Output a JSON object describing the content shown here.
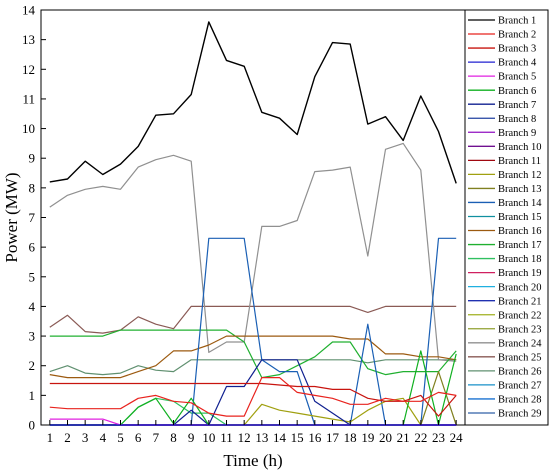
{
  "chart_data": {
    "type": "line",
    "xlabel": "Time (h)",
    "ylabel": "Power (MW)",
    "xlim": [
      0.5,
      24.5
    ],
    "ylim": [
      0,
      14
    ],
    "x_ticks": [
      "1",
      "2",
      "3",
      "4",
      "5",
      "6",
      "7",
      "8",
      "9",
      "10",
      "11",
      "12",
      "13",
      "14",
      "15",
      "16",
      "17",
      "18",
      "19",
      "20",
      "21",
      "22",
      "23",
      "24"
    ],
    "y_ticks": [
      "0",
      "1",
      "2",
      "3",
      "4",
      "5",
      "6",
      "7",
      "8",
      "9",
      "10",
      "11",
      "12",
      "13",
      "14"
    ],
    "grid": false,
    "legend": "right",
    "x": [
      1,
      2,
      3,
      4,
      5,
      6,
      7,
      8,
      9,
      10,
      11,
      12,
      13,
      14,
      15,
      16,
      17,
      18,
      19,
      20,
      21,
      22,
      23,
      24
    ],
    "series": [
      {
        "name": "Branch 1",
        "color": "#000000",
        "values": [
          8.2,
          8.3,
          8.9,
          8.45,
          8.8,
          9.4,
          10.45,
          10.5,
          11.15,
          13.6,
          12.3,
          12.1,
          10.55,
          10.35,
          9.8,
          11.75,
          12.9,
          12.85,
          10.15,
          10.4,
          9.6,
          11.1,
          9.9,
          8.15
        ]
      },
      {
        "name": "Branch 2",
        "color": "#e8231e",
        "values": [
          0.6,
          0.55,
          0.55,
          0.55,
          0.55,
          0.9,
          1.0,
          0.8,
          0.75,
          0.4,
          0.3,
          0.3,
          1.6,
          1.6,
          1.1,
          1.0,
          0.9,
          0.7,
          0.7,
          0.9,
          0.8,
          0.8,
          1.1,
          1.0
        ]
      },
      {
        "name": "Branch 3",
        "color": "#c8140f",
        "values": [
          1.4,
          1.4,
          1.4,
          1.4,
          1.4,
          1.4,
          1.4,
          1.4,
          1.4,
          1.4,
          1.4,
          1.4,
          1.4,
          1.35,
          1.3,
          1.3,
          1.2,
          1.2,
          0.9,
          0.8,
          0.8,
          1.0,
          0.3,
          1.0
        ]
      },
      {
        "name": "Branch 4",
        "color": "#2020d0",
        "values": [
          0,
          0,
          0,
          0,
          0,
          0,
          0,
          0,
          0,
          0,
          0,
          0,
          0,
          0,
          0,
          0,
          0,
          0,
          0,
          0,
          0,
          0,
          0,
          0
        ]
      },
      {
        "name": "Branch 5",
        "color": "#e020e0",
        "values": [
          0.2,
          0.2,
          0.2,
          0.2,
          0,
          0,
          0,
          0,
          0,
          0,
          0,
          0,
          0,
          0,
          0,
          0,
          0,
          0,
          0,
          0,
          0,
          0,
          0,
          0
        ]
      },
      {
        "name": "Branch 6",
        "color": "#10b020",
        "values": [
          0,
          0,
          0,
          0,
          0,
          0.6,
          0.9,
          0.05,
          0.9,
          0,
          0,
          0,
          0,
          0,
          0,
          0,
          0,
          0,
          0,
          0,
          0,
          2.5,
          0,
          2.4
        ]
      },
      {
        "name": "Branch 7",
        "color": "#102090",
        "values": [
          0,
          0,
          0,
          0,
          0,
          0,
          0,
          0,
          0.5,
          0,
          1.3,
          1.3,
          2.2,
          2.2,
          2.2,
          0.8,
          0.4,
          0,
          0,
          0,
          0,
          0,
          0,
          0
        ]
      },
      {
        "name": "Branch 8",
        "color": "#2040a0",
        "values": [
          0,
          0,
          0,
          0,
          0,
          0,
          0,
          0,
          0,
          0,
          0,
          0,
          0,
          0,
          0,
          0,
          0,
          0,
          0,
          0,
          0,
          0,
          0,
          0
        ]
      },
      {
        "name": "Branch 9",
        "color": "#9010c0",
        "values": [
          0,
          0,
          0,
          0,
          0,
          0,
          0,
          0,
          0,
          0,
          0,
          0,
          0,
          0,
          0,
          0,
          0,
          0,
          0,
          0,
          0,
          0,
          0,
          0
        ]
      },
      {
        "name": "Branch 10",
        "color": "#701090",
        "values": [
          0,
          0,
          0,
          0,
          0,
          0,
          0,
          0,
          0,
          0,
          0,
          0,
          0,
          0,
          0,
          0,
          0,
          0,
          0,
          0,
          0,
          0,
          0,
          0
        ]
      },
      {
        "name": "Branch 11",
        "color": "#a00810",
        "values": [
          0,
          0,
          0,
          0,
          0,
          0,
          0,
          0,
          0,
          0,
          0,
          0,
          0,
          0,
          0,
          0,
          0,
          0,
          0,
          0,
          0,
          0,
          0,
          0
        ]
      },
      {
        "name": "Branch 12",
        "color": "#a0a010",
        "values": [
          0,
          0,
          0,
          0,
          0,
          0,
          0,
          0,
          0,
          0,
          0,
          0,
          0.7,
          0.5,
          0.4,
          0.3,
          0.2,
          0.1,
          0.5,
          0.8,
          0.9,
          0,
          0,
          0
        ]
      },
      {
        "name": "Branch 13",
        "color": "#808020",
        "values": [
          0,
          0,
          0,
          0,
          0,
          0,
          0,
          0,
          0,
          0,
          0,
          0,
          0,
          0,
          0,
          0,
          0,
          0,
          0,
          0,
          0,
          0,
          1.8,
          0
        ]
      },
      {
        "name": "Branch 14",
        "color": "#1a5fb4",
        "values": [
          0,
          0,
          0,
          0,
          0,
          0,
          0,
          0,
          0,
          6.3,
          6.3,
          6.3,
          2.2,
          1.8,
          1.8,
          0,
          0,
          0,
          3.4,
          0,
          0,
          0,
          6.3,
          6.3
        ]
      },
      {
        "name": "Branch 15",
        "color": "#1090a0",
        "values": [
          0,
          0,
          0,
          0,
          0,
          0,
          0,
          0,
          0,
          0,
          0,
          0,
          0,
          0,
          0,
          0,
          0,
          0,
          0,
          0,
          0,
          0,
          0,
          0
        ]
      },
      {
        "name": "Branch 16",
        "color": "#9c5a10",
        "values": [
          1.7,
          1.6,
          1.6,
          1.6,
          1.6,
          1.8,
          2.0,
          2.5,
          2.5,
          2.7,
          3.0,
          3.0,
          3.0,
          3.0,
          3.0,
          3.0,
          3.0,
          2.9,
          2.9,
          2.4,
          2.4,
          2.3,
          2.3,
          2.2
        ]
      },
      {
        "name": "Branch 17",
        "color": "#20b030",
        "values": [
          3.0,
          3.0,
          3.0,
          3.0,
          3.2,
          3.2,
          3.2,
          3.2,
          3.2,
          3.2,
          3.2,
          2.8,
          1.6,
          1.7,
          2.0,
          2.3,
          2.8,
          2.8,
          1.9,
          1.7,
          1.8,
          1.8,
          1.8,
          2.5
        ]
      },
      {
        "name": "Branch 18",
        "color": "#30c060",
        "values": [
          0,
          0,
          0,
          0,
          0,
          0.6,
          0.9,
          0.8,
          0.4,
          0.4,
          0,
          0,
          0,
          0,
          0,
          0,
          0,
          0,
          0,
          0,
          0,
          0,
          0,
          0
        ]
      },
      {
        "name": "Branch 19",
        "color": "#d02060",
        "values": [
          0,
          0,
          0,
          0,
          0,
          0,
          0,
          0,
          0,
          0,
          0,
          0,
          0,
          0,
          0,
          0,
          0,
          0,
          0,
          0,
          0,
          0,
          0,
          0
        ]
      },
      {
        "name": "Branch 20",
        "color": "#20b0e0",
        "values": [
          0,
          0,
          0,
          0,
          0,
          0,
          0,
          0,
          0,
          0,
          0,
          0,
          0,
          0,
          0,
          0,
          0,
          0,
          0,
          0,
          0,
          0,
          0,
          0
        ]
      },
      {
        "name": "Branch 21",
        "color": "#2030b0",
        "values": [
          0,
          0,
          0,
          0,
          0,
          0,
          0,
          0,
          0,
          0,
          0,
          0,
          0,
          0,
          0,
          0,
          0,
          0,
          0,
          0,
          0,
          0,
          0,
          0
        ]
      },
      {
        "name": "Branch 22",
        "color": "#a0b020",
        "values": [
          0,
          0,
          0,
          0,
          0,
          0,
          0,
          0,
          0,
          0,
          0,
          0,
          0,
          0,
          0,
          0,
          0,
          0,
          0,
          0,
          0,
          0,
          0,
          0
        ]
      },
      {
        "name": "Branch 23",
        "color": "#90a030",
        "values": [
          0,
          0,
          0,
          0,
          0,
          0,
          0,
          0,
          0,
          0,
          0,
          0,
          0,
          0,
          0,
          0,
          0,
          0,
          0,
          0,
          0,
          0,
          0,
          0
        ]
      },
      {
        "name": "Branch 24",
        "color": "#909090",
        "values": [
          7.35,
          7.75,
          7.95,
          8.05,
          7.95,
          8.7,
          8.95,
          9.1,
          8.9,
          2.45,
          2.8,
          2.8,
          6.7,
          6.7,
          6.9,
          8.55,
          8.6,
          8.7,
          5.7,
          9.3,
          9.5,
          8.6,
          2.2,
          2.15
        ]
      },
      {
        "name": "Branch 25",
        "color": "#8a5a55",
        "values": [
          3.3,
          3.7,
          3.15,
          3.1,
          3.2,
          3.65,
          3.4,
          3.25,
          4.0,
          4.0,
          4.0,
          4.0,
          4.0,
          4.0,
          4.0,
          4.0,
          4.0,
          4.0,
          3.8,
          4.0,
          4.0,
          4.0,
          4.0,
          4.0
        ]
      },
      {
        "name": "Branch 26",
        "color": "#609070",
        "values": [
          1.8,
          2.0,
          1.75,
          1.7,
          1.75,
          2.0,
          1.85,
          1.8,
          2.2,
          2.2,
          2.2,
          2.2,
          2.2,
          2.2,
          2.2,
          2.2,
          2.2,
          2.2,
          2.1,
          2.2,
          2.2,
          2.2,
          2.2,
          2.2
        ]
      },
      {
        "name": "Branch 27",
        "color": "#1890c8",
        "values": [
          0,
          0,
          0,
          0,
          0,
          0,
          0,
          0,
          0,
          0,
          0,
          0,
          0,
          0,
          0,
          0,
          0,
          0,
          0,
          0,
          0,
          0,
          0,
          0
        ]
      },
      {
        "name": "Branch 28",
        "color": "#1870d0",
        "values": [
          0,
          0,
          0,
          0,
          0,
          0,
          0,
          0,
          0,
          0,
          0,
          0,
          0,
          0,
          0,
          0,
          0,
          0,
          0,
          0,
          0,
          0,
          0,
          0
        ]
      },
      {
        "name": "Branch 29",
        "color": "#3060a8",
        "values": [
          0,
          0,
          0,
          0,
          0,
          0,
          0,
          0,
          0,
          0,
          0,
          0,
          0,
          0,
          0,
          0,
          0,
          0,
          0,
          0,
          0,
          0,
          0,
          0
        ]
      }
    ]
  }
}
